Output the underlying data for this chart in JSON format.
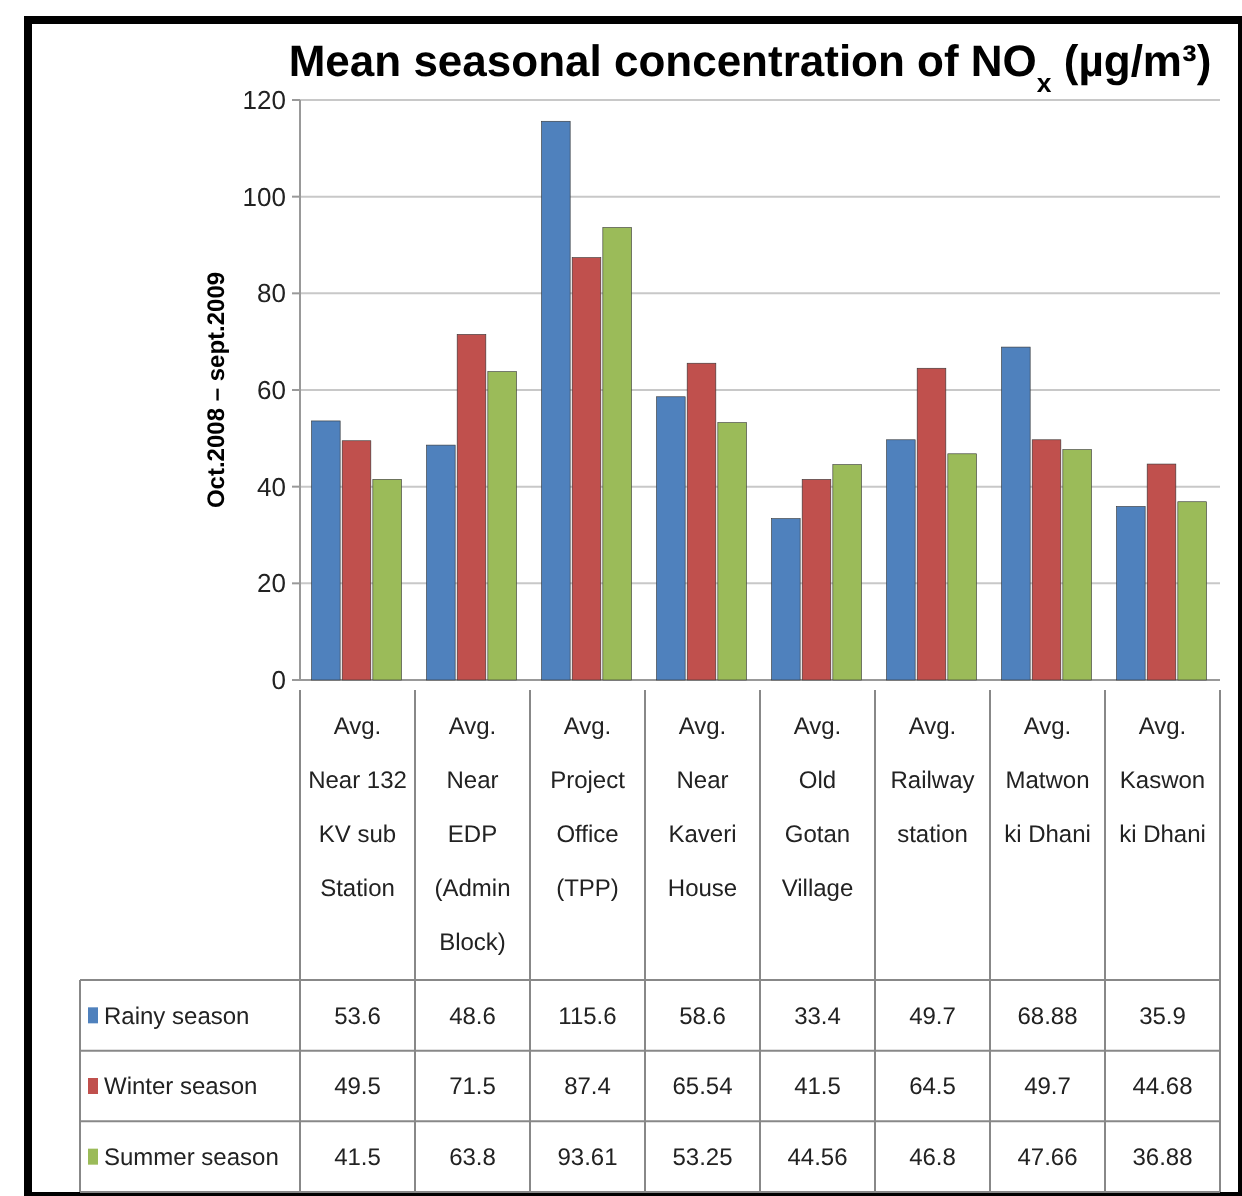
{
  "chart_data": {
    "type": "bar",
    "title": "Mean seasonal concentration of NO$_{x}$ (µg/m³)",
    "ylabel": "Oct.2008 – sept.2009",
    "categories": [
      "Avg.\nNear 132\nKV sub\nStation",
      "Avg.\nNear\nEDP\n(Admin\nBlock)",
      "Avg.\nProject\nOffice\n(TPP)",
      "Avg.\nNear\nKaveri\nHouse",
      "Avg.\nOld\nGotan\nVillage",
      "Avg.\nRailway\nstation",
      "Avg.\nMatwon\nki Dhani",
      "Avg.\nKaswon\nki Dhani"
    ],
    "series": [
      {
        "name": "Rainy season",
        "color": "#4f81bd",
        "values": [
          53.6,
          48.6,
          115.6,
          58.6,
          33.4,
          49.7,
          68.88,
          35.9
        ]
      },
      {
        "name": "Winter season",
        "color": "#c0504d",
        "values": [
          49.5,
          71.5,
          87.4,
          65.54,
          41.5,
          64.5,
          49.7,
          44.68
        ]
      },
      {
        "name": "Summer season",
        "color": "#9bbb59",
        "values": [
          41.5,
          63.8,
          93.61,
          53.25,
          44.56,
          46.8,
          47.66,
          36.88
        ]
      }
    ],
    "ylim": [
      0,
      120
    ],
    "yticks": [
      0,
      20,
      40,
      60,
      80,
      100,
      120
    ],
    "grid": "y",
    "legend": "bottom",
    "data_labels": true
  }
}
